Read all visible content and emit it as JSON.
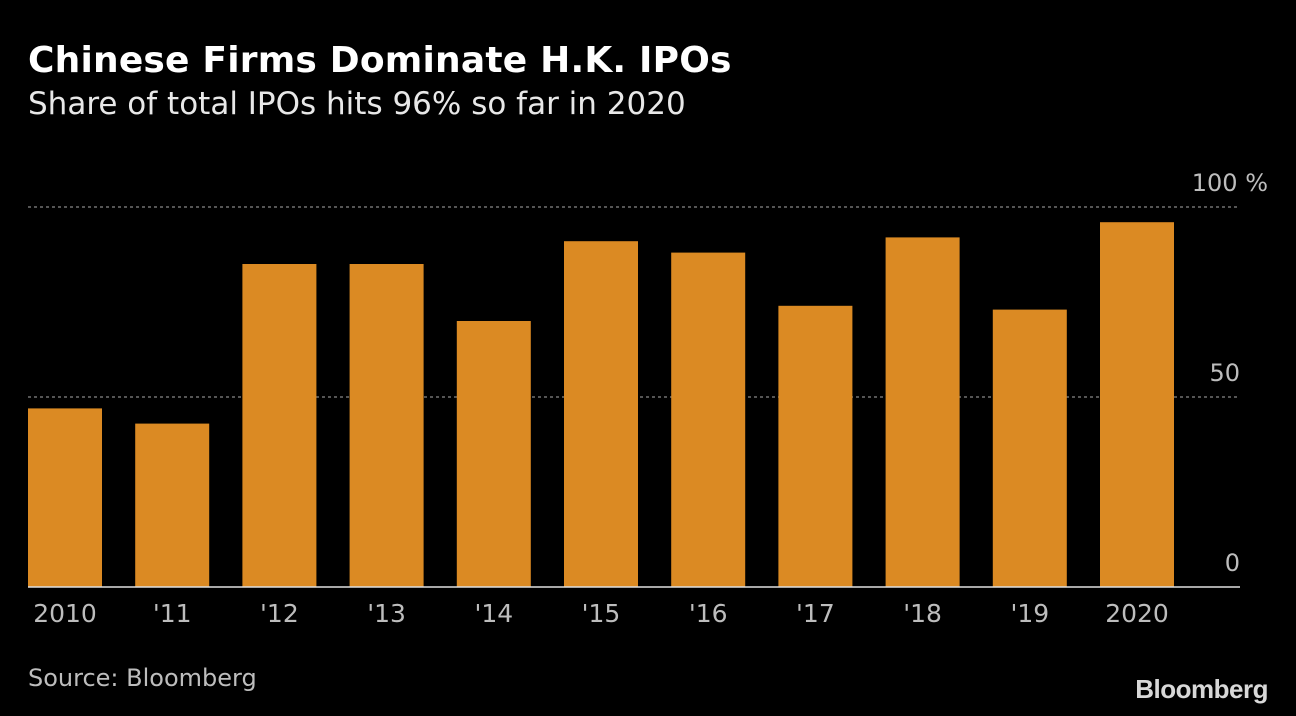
{
  "title": "Chinese Firms Dominate H.K. IPOs",
  "subtitle": "Share of total IPOs hits 96% so far in 2020",
  "source": "Source: Bloomberg",
  "logo": "Bloomberg",
  "colors": {
    "bar": "#DB8A23",
    "background": "#000000",
    "grid": "#888888",
    "axis": "#bdbdbd"
  },
  "chart_data": {
    "type": "bar",
    "categories": [
      "2010",
      "'11",
      "'12",
      "'13",
      "'14",
      "'15",
      "'16",
      "'17",
      "'18",
      "'19",
      "2020"
    ],
    "values": [
      47,
      43,
      85,
      85,
      70,
      91,
      88,
      74,
      92,
      73,
      96
    ],
    "ylim": [
      0,
      100
    ],
    "yticks": [
      {
        "value": 0,
        "label": "0"
      },
      {
        "value": 50,
        "label": "50"
      },
      {
        "value": 100,
        "label": "100 %"
      }
    ],
    "grid": true,
    "xlabel": "",
    "ylabel": "%"
  }
}
